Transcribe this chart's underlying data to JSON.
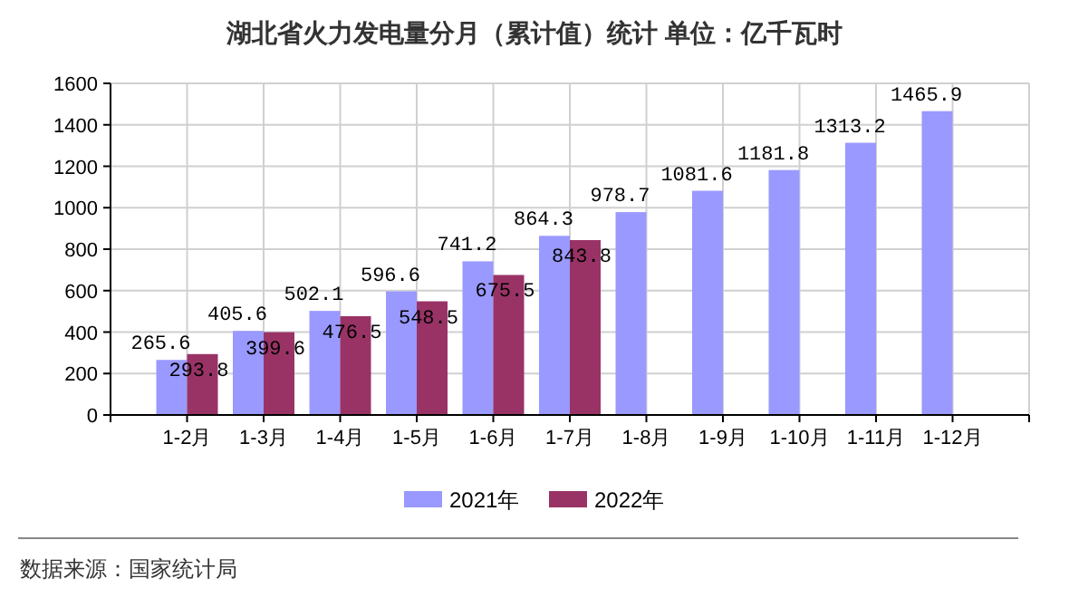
{
  "chart_data": {
    "type": "bar",
    "title": "湖北省火力发电量分月（累计值）统计 单位：亿千瓦时",
    "categories": [
      "1-2月",
      "1-3月",
      "1-4月",
      "1-5月",
      "1-6月",
      "1-7月",
      "1-8月",
      "1-9月",
      "1-10月",
      "1-11月",
      "1-12月"
    ],
    "series": [
      {
        "name": "2021年",
        "color": "#9999ff",
        "values": [
          265.6,
          405.6,
          502.1,
          596.6,
          741.2,
          864.3,
          978.7,
          1081.6,
          1181.8,
          1313.2,
          1465.9
        ]
      },
      {
        "name": "2022年",
        "color": "#993366",
        "values": [
          293.8,
          399.6,
          476.5,
          548.5,
          675.5,
          843.8,
          null,
          null,
          null,
          null,
          null
        ]
      }
    ],
    "ylim": [
      0,
      1600
    ],
    "yticks": [
      0,
      200,
      400,
      600,
      800,
      1000,
      1200,
      1400,
      1600
    ],
    "grid": true,
    "legend": "bottom",
    "data_labels": true,
    "annotations": [
      "数据来源：国家统计局"
    ]
  }
}
